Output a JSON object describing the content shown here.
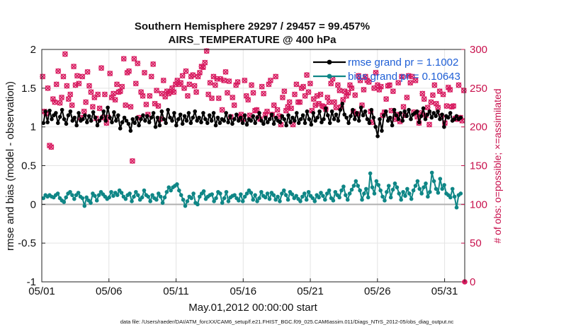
{
  "chart_data": {
    "type": "line",
    "title": "Southern Hemisphere 29297 / 29457 = 99.457%",
    "subtitle": "AIRS_TEMPERATURE @ 400 hPa",
    "xlabel": "May.01,2012 00:00:00 start",
    "ylabel_left": "rmse and bias (model - observation)",
    "ylabel_right": "# of obs: o=possible; ×=assimilated",
    "footnote": "data file: /Users/raeder/DAI/ATM_forcXX/CAM6_setup/f.e21.FHIST_BGC.f09_025.CAM6assim.011/Diags_NTrS_2012-05/obs_diag_output.nc",
    "x_ticks": [
      "05/01",
      "05/06",
      "05/11",
      "05/16",
      "05/21",
      "05/26",
      "05/31"
    ],
    "y_left_ticks": [
      "-1",
      "-0.5",
      "0",
      "0.5",
      "1",
      "1.5",
      "2"
    ],
    "y_right_ticks": [
      "0",
      "50",
      "100",
      "150",
      "200",
      "250",
      "300"
    ],
    "ylim_left": [
      -1,
      2
    ],
    "ylim_right": [
      0,
      300
    ],
    "xlim": [
      0,
      31.5
    ],
    "grid": true,
    "legend_position": "top-right",
    "colors": {
      "rmse": "#000000",
      "bias": "#0f8686",
      "obs": "#d81b60",
      "zero_line": "#b0b0b0",
      "grid": "#e4e4e4"
    },
    "series": [
      {
        "name": "rmse grand pr = 1.1002",
        "axis": "left",
        "values": [
          1.05,
          1.2,
          1.06,
          1.21,
          1.1,
          1.15,
          1.18,
          1.05,
          1.13,
          1.22,
          1.1,
          1.04,
          1.15,
          1.2,
          1.08,
          1.12,
          1.02,
          1.18,
          1.08,
          1.1,
          1.15,
          1.06,
          1.14,
          1.08,
          1.19,
          1.12,
          1.02,
          1.08,
          1.12,
          1.2,
          1.08,
          1.25,
          1.12,
          1.06,
          1.19,
          1.08,
          1.15,
          0.98,
          1.06,
          1.12,
          1.08,
          1.04,
          0.95,
          1.1,
          1.05,
          1.12,
          1.02,
          1.1,
          1.15,
          1.08,
          1.14,
          1.06,
          1.12,
          1.18,
          1.0,
          1.12,
          1.02,
          1.2,
          1.1,
          1.05,
          1.22,
          1.12,
          1.08,
          1.18,
          1.02,
          1.1,
          1.16,
          1.04,
          1.14,
          1.08,
          1.18,
          1.05,
          1.12,
          1.2,
          1.08,
          1.12,
          1.06,
          1.18,
          1.1,
          1.05,
          1.15,
          1.08,
          1.18,
          1.02,
          1.12,
          1.05,
          1.1,
          1.08,
          1.18,
          1.06,
          1.14,
          1.04,
          1.1,
          1.16,
          1.08,
          1.12,
          1.05,
          1.15,
          1.03,
          1.1,
          1.08,
          1.14,
          1.05,
          1.12,
          1.18,
          1.08,
          1.04,
          1.12,
          1.06,
          1.1,
          1.16,
          1.04,
          1.12,
          1.08,
          1.06,
          1.14,
          1.1,
          1.02,
          1.15,
          1.06,
          1.12,
          1.08,
          1.18,
          1.05,
          1.1,
          1.15,
          1.05,
          1.2,
          1.1,
          1.03,
          1.18,
          1.08,
          1.12,
          1.2,
          1.06,
          1.1,
          1.24,
          1.15,
          1.05,
          1.2,
          1.1,
          1.16,
          1.08,
          1.22,
          1.3,
          1.16,
          1.12,
          1.05,
          1.14,
          1.22,
          1.1,
          1.18,
          1.08,
          1.25,
          1.15,
          1.2,
          1.1,
          1.05,
          1.22,
          1.12,
          1.0,
          0.88,
          1.1,
          0.95,
          1.15,
          1.2,
          1.08,
          1.12,
          1.02,
          1.22,
          1.15,
          1.1,
          1.18,
          1.08,
          1.2,
          1.14,
          1.22,
          1.1,
          1.16,
          1.18,
          1.2,
          1.06,
          1.14,
          1.24,
          1.1,
          1.16,
          1.2,
          1.12,
          1.18,
          1.14,
          1.2,
          1.1,
          1.16,
          1.0,
          1.14,
          1.12,
          1.18,
          1.08,
          1.1,
          1.14,
          1.1,
          1.12
        ]
      },
      {
        "name": "bias grand pr = 0.10643",
        "axis": "left",
        "values": [
          0.08,
          0.12,
          0.1,
          0.12,
          0.1,
          0.09,
          0.12,
          0.14,
          0.08,
          0.05,
          0.03,
          0.09,
          0.14,
          0.16,
          0.12,
          0.07,
          0.12,
          0.15,
          0.1,
          0.08,
          -0.02,
          0.09,
          0.05,
          0.02,
          0.14,
          0.11,
          0.05,
          0.12,
          0.16,
          0.13,
          0.1,
          0.07,
          0.09,
          0.16,
          0.11,
          0.15,
          0.12,
          0.18,
          0.15,
          0.1,
          0.07,
          0.12,
          0.14,
          0.04,
          0.1,
          0.16,
          0.12,
          0.06,
          0.09,
          0.18,
          0.12,
          0.1,
          0.04,
          0.12,
          0.08,
          0.06,
          0.14,
          0.1,
          0.02,
          0.09,
          0.16,
          0.22,
          0.18,
          0.22,
          0.24,
          0.26,
          0.18,
          0.12,
          0.06,
          -0.02,
          0.04,
          0.1,
          0.08,
          0.14,
          0.02,
          0.0,
          0.1,
          0.14,
          0.17,
          0.07,
          0.1,
          0.12,
          0.13,
          0.04,
          0.08,
          0.16,
          0.14,
          0.02,
          0.08,
          0.16,
          0.04,
          0.09,
          0.11,
          0.12,
          0.08,
          0.05,
          0.13,
          0.04,
          0.1,
          0.14,
          0.18,
          0.15,
          0.06,
          0.12,
          0.04,
          0.08,
          0.16,
          0.11,
          0.09,
          0.14,
          0.07,
          0.15,
          0.12,
          0.06,
          0.1,
          0.04,
          0.14,
          0.18,
          0.12,
          0.06,
          0.16,
          0.13,
          0.08,
          0.11,
          0.07,
          0.04,
          0.1,
          0.14,
          0.06,
          0.16,
          0.11,
          0.08,
          0.04,
          0.12,
          0.09,
          0.15,
          0.11,
          0.06,
          0.14,
          0.18,
          0.08,
          0.05,
          0.16,
          0.12,
          0.09,
          0.18,
          0.23,
          0.12,
          0.06,
          0.14,
          0.19,
          0.24,
          0.3,
          0.24,
          0.18,
          0.06,
          0.14,
          0.2,
          0.09,
          0.4,
          0.22,
          0.14,
          0.3,
          0.25,
          0.18,
          0.1,
          0.05,
          0.16,
          0.24,
          0.09,
          0.19,
          0.27,
          0.22,
          0.14,
          0.06,
          0.16,
          0.11,
          0.2,
          0.14,
          0.07,
          0.18,
          0.24,
          0.3,
          0.2,
          0.14,
          0.22,
          0.27,
          0.1,
          0.16,
          0.41,
          0.3,
          0.2,
          0.15,
          0.33,
          0.2,
          0.25,
          0.14,
          0.12,
          0.09,
          0.2,
          0.1,
          -0.04,
          0.12,
          0.14
        ]
      },
      {
        "name": "# of obs possible",
        "axis": "right",
        "marker": "o",
        "values": [
          265,
          220,
          217,
          250,
          176,
          174,
          236,
          232,
          255,
          272,
          231,
          238,
          265,
          294,
          253,
          236,
          242,
          228,
          278,
          254,
          266,
          256,
          212,
          265,
          220,
          232,
          271,
          253,
          245,
          226,
          238,
          211,
          242,
          224,
          276,
          212,
          242,
          205,
          212,
          269,
          238,
          243,
          235,
          255,
          245,
          246,
          252,
          288,
          228,
          270,
          272,
          226,
          156,
          288,
          256,
          282,
          212,
          245,
          240,
          270,
          229,
          216,
          240,
          265,
          281,
          230,
          247,
          227,
          210,
          243,
          260,
          239,
          246,
          243,
          245,
          250,
          245,
          255,
          260,
          255,
          257,
          266,
          250,
          272,
          240,
          255,
          265,
          267,
          253,
          245,
          265,
          270,
          278,
          277,
          283,
          298,
          242,
          257,
          237,
          265,
          254,
          262,
          237,
          262,
          222,
          260,
          271,
          244,
          259,
          213,
          238,
          228,
          254,
          258,
          213,
          216,
          210,
          260,
          240,
          235,
          215,
          254,
          244,
          221,
          222,
          212,
          210,
          252,
          243,
          216,
          220,
          255,
          260,
          216,
          228,
          265,
          222,
          214,
          203,
          238,
          246,
          221,
          226,
          232,
          224,
          203,
          242,
          255,
          232,
          232,
          250,
          252,
          240,
          267,
          245,
          256,
          221,
          236,
          228,
          240,
          230,
          242,
          227,
          226,
          223,
          238,
          232,
          256,
          262,
          232,
          225,
          254,
          247,
          226,
          235,
          246,
          240,
          244,
          254,
          250,
          220,
          241,
          217,
          266,
          260,
          228,
          248,
          265,
          260,
          258,
          220,
          206,
          250,
          270,
          254,
          248,
          252,
          215,
          219,
          236,
          253,
          254,
          221,
          246,
          210,
          216,
          257,
          207,
          265,
          226,
          215,
          238,
          266,
          257,
          265,
          219,
          260,
          213,
          205,
          218,
          243,
          236,
          215,
          225,
          203,
          232,
          241,
          254,
          230,
          225,
          246,
          214,
          242,
          205,
          227,
          251,
          248,
          226,
          227,
          211,
          210,
          254,
          212,
          208,
          247
        ]
      }
    ]
  }
}
